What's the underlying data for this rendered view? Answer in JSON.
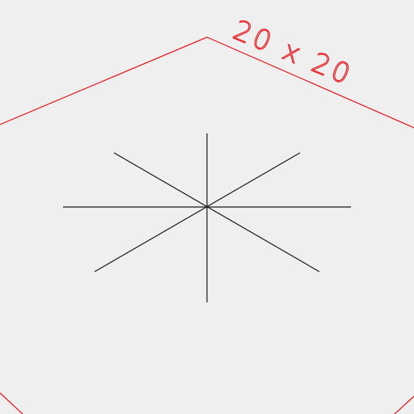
{
  "viewport": {
    "background_color": "#efefef"
  },
  "build_plate": {
    "outline_color": "#e8141b",
    "size_label": "20 x 20"
  },
  "origin_marker": {
    "line_color": "#1a1a1a",
    "icon": "asterisk-axis-marker"
  }
}
